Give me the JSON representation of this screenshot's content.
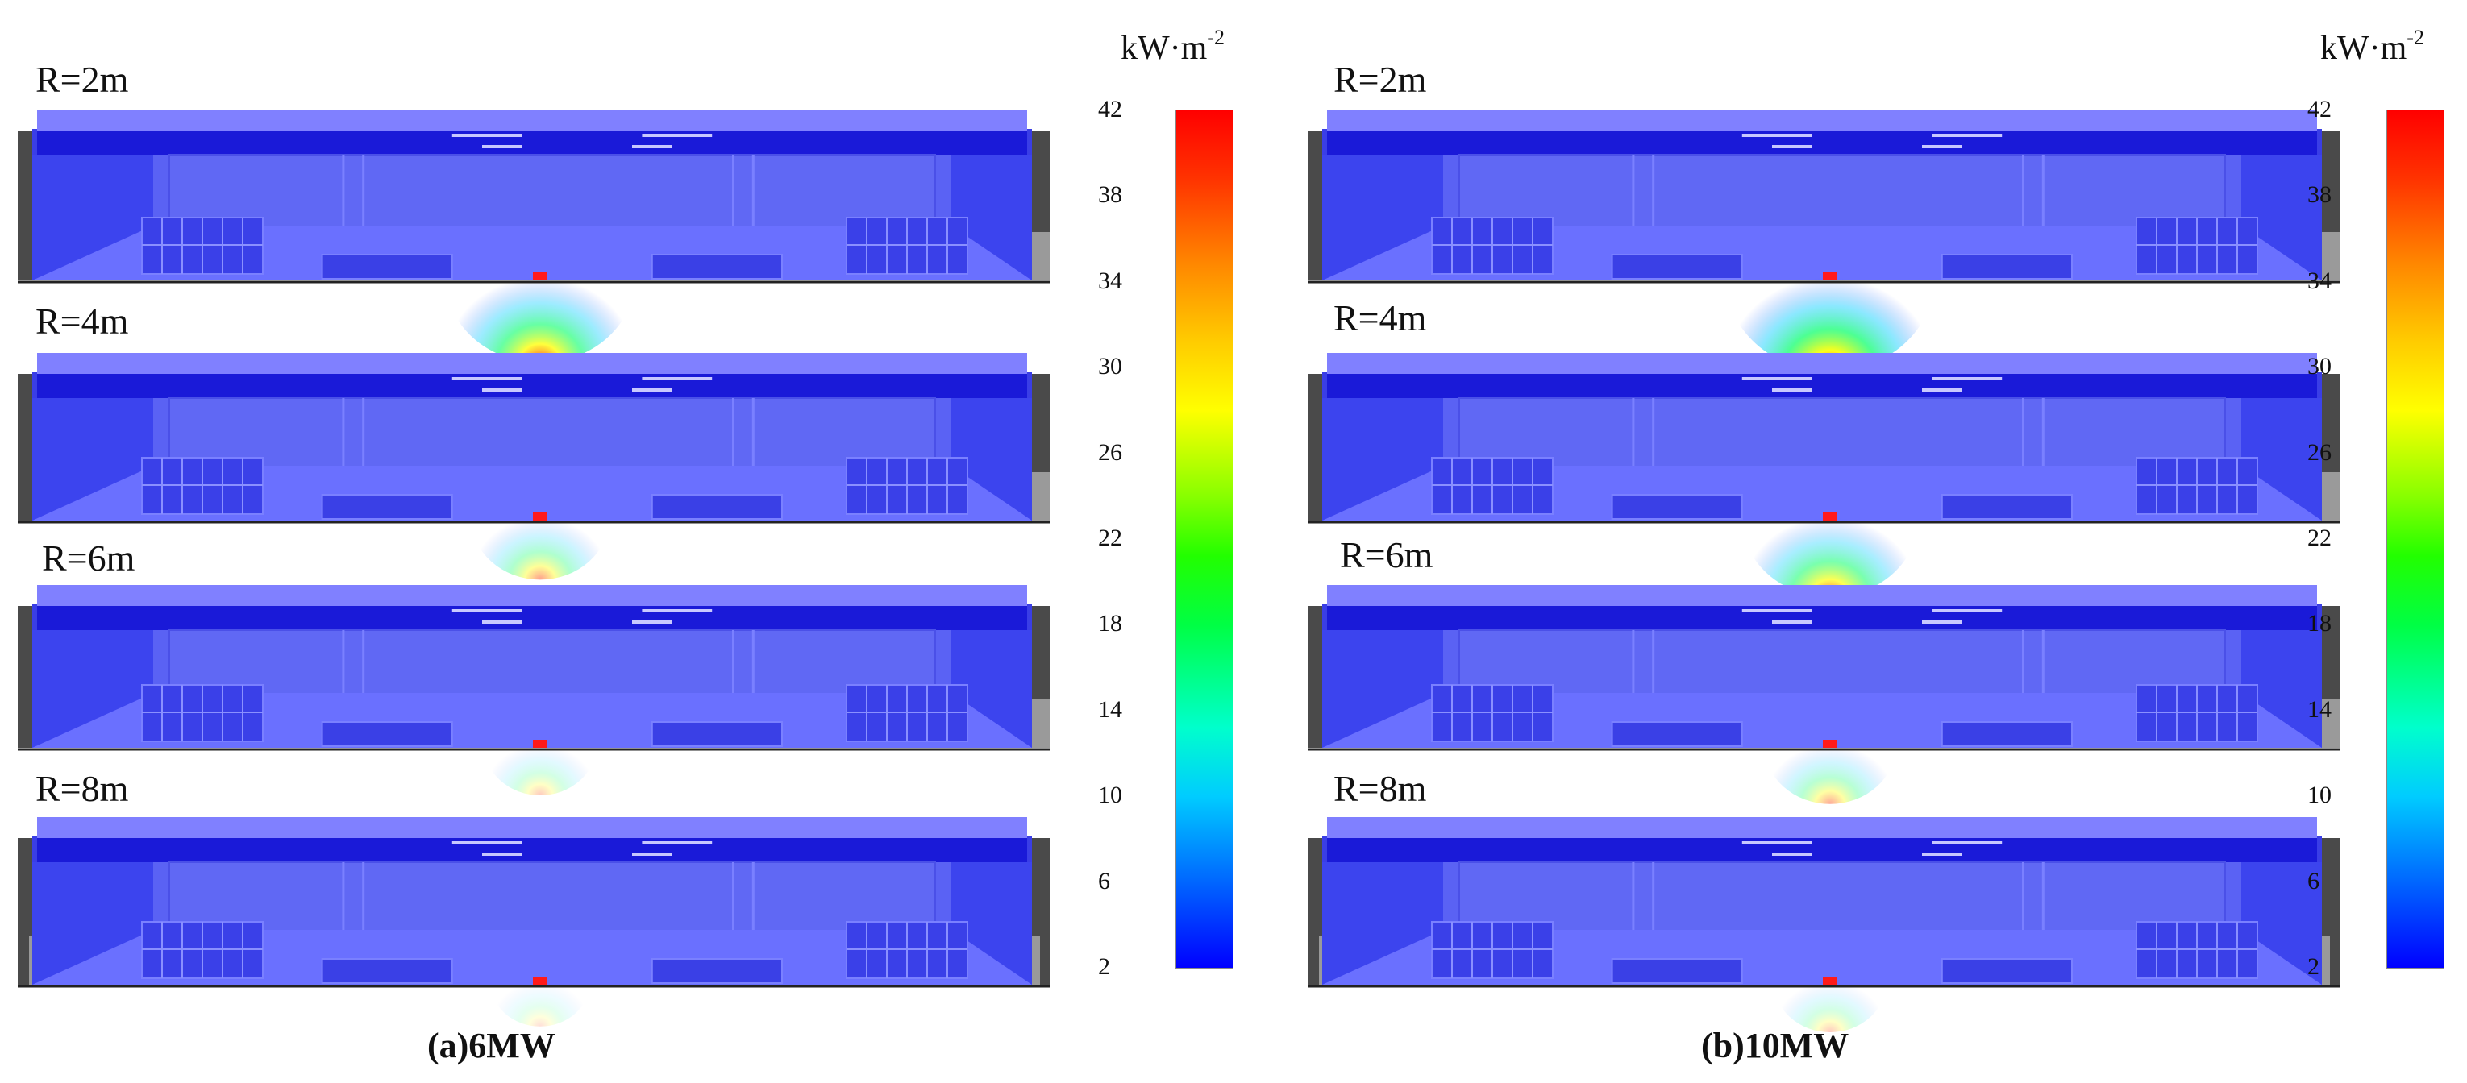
{
  "panels": [
    {
      "caption": "(a)6MW",
      "rows": [
        {
          "label": "R=2m",
          "glow": 0.85
        },
        {
          "label": "R=4m",
          "glow": 0.45
        },
        {
          "label": "R=6m",
          "glow": 0.25
        },
        {
          "label": "R=8m",
          "glow": 0.15
        }
      ],
      "colorbar": {
        "unit": "kW·m",
        "unit_exp": "-2",
        "ticks": [
          "42",
          "38",
          "34",
          "30",
          "26",
          "22",
          "18",
          "14",
          "10",
          "6",
          "2"
        ]
      }
    },
    {
      "caption": "(b)10MW",
      "rows": [
        {
          "label": "R=2m",
          "glow": 1.0
        },
        {
          "label": "R=4m",
          "glow": 0.75
        },
        {
          "label": "R=6m",
          "glow": 0.4
        },
        {
          "label": "R=8m",
          "glow": 0.25
        }
      ],
      "colorbar": {
        "unit": "kW·m",
        "unit_exp": "-2",
        "ticks": [
          "42",
          "38",
          "34",
          "30",
          "26",
          "22",
          "18",
          "14",
          "10",
          "6",
          "2"
        ]
      }
    }
  ]
}
